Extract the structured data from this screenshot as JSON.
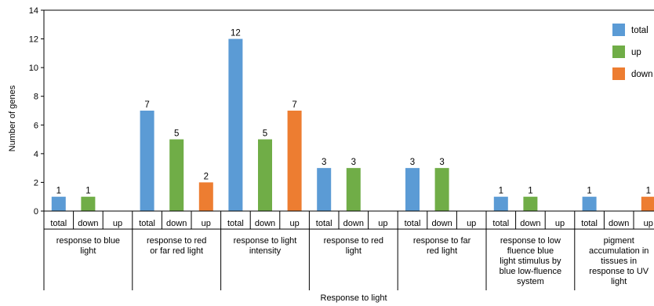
{
  "chart_data": {
    "type": "bar",
    "xlabel": "Response to light",
    "ylabel": "Number of genes",
    "ylim": [
      0,
      14
    ],
    "yticks": [
      "0",
      "2",
      "4",
      "6",
      "8",
      "10",
      "12",
      "14"
    ],
    "legend": {
      "placement": "top-right",
      "entries": [
        {
          "label": "total",
          "color": "#5b9bd5"
        },
        {
          "label": "up",
          "color": "#70ad47"
        },
        {
          "label": "down",
          "color": "#ed7d31"
        }
      ]
    },
    "groups": [
      {
        "label": "response to blue light",
        "bars": [
          {
            "label": "total",
            "value": 1,
            "color": "#5b9bd5"
          },
          {
            "label": "down",
            "value": 1,
            "color": "#70ad47"
          },
          {
            "label": "up",
            "value": null,
            "color": "#ed7d31"
          }
        ]
      },
      {
        "label": "response to red or far red light",
        "bars": [
          {
            "label": "total",
            "value": 7,
            "color": "#5b9bd5"
          },
          {
            "label": "down",
            "value": 5,
            "color": "#70ad47"
          },
          {
            "label": "up",
            "value": 2,
            "color": "#ed7d31"
          }
        ]
      },
      {
        "label": "response to light intensity",
        "bars": [
          {
            "label": "total",
            "value": 12,
            "color": "#5b9bd5"
          },
          {
            "label": "down",
            "value": 5,
            "color": "#70ad47"
          },
          {
            "label": "up",
            "value": 7,
            "color": "#ed7d31"
          }
        ]
      },
      {
        "label": "response to red light",
        "bars": [
          {
            "label": "total",
            "value": 3,
            "color": "#5b9bd5"
          },
          {
            "label": "down",
            "value": 3,
            "color": "#70ad47"
          },
          {
            "label": "up",
            "value": null,
            "color": "#ed7d31"
          }
        ]
      },
      {
        "label": "response to far red light",
        "bars": [
          {
            "label": "total",
            "value": 3,
            "color": "#5b9bd5"
          },
          {
            "label": "down",
            "value": 3,
            "color": "#70ad47"
          },
          {
            "label": "up",
            "value": null,
            "color": "#ed7d31"
          }
        ]
      },
      {
        "label": "response to low fluence blue light stimulus by blue low-fluence system",
        "bars": [
          {
            "label": "total",
            "value": 1,
            "color": "#5b9bd5"
          },
          {
            "label": "down",
            "value": 1,
            "color": "#70ad47"
          },
          {
            "label": "up",
            "value": null,
            "color": "#ed7d31"
          }
        ]
      },
      {
        "label": "pigment accumulation in tissues in response to UV light",
        "bars": [
          {
            "label": "total",
            "value": 1,
            "color": "#5b9bd5"
          },
          {
            "label": "down",
            "value": null,
            "color": "#70ad47"
          },
          {
            "label": "up",
            "value": 1,
            "color": "#ed7d31"
          }
        ]
      }
    ]
  }
}
